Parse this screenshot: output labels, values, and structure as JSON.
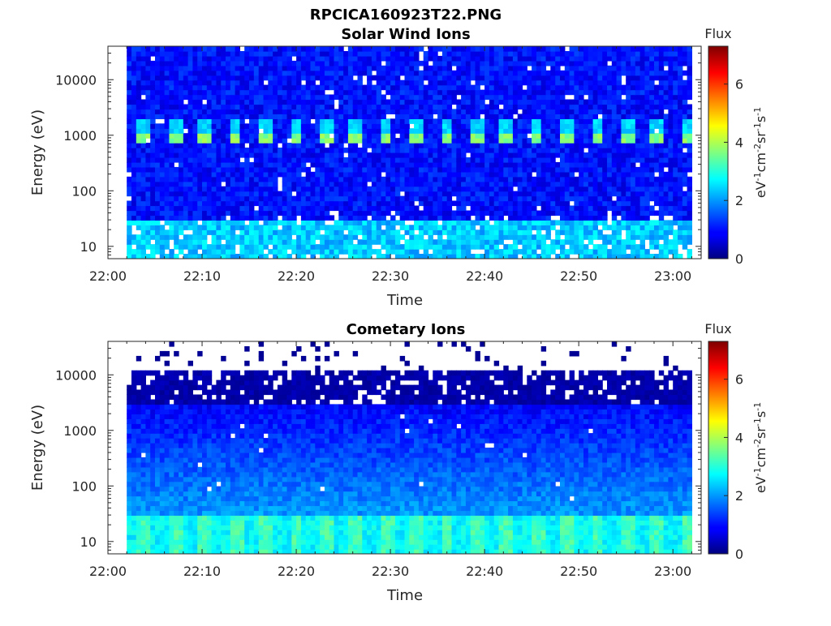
{
  "figure": {
    "title": "RPCICA160923T22.PNG"
  },
  "chart_data": [
    {
      "type": "heatmap",
      "title": "Solar Wind Ions",
      "xlabel": "Time",
      "ylabel": "Energy (eV)",
      "x_ticks": [
        "22:00",
        "22:10",
        "22:20",
        "22:30",
        "22:40",
        "22:50",
        "23:00"
      ],
      "x_range": [
        "22:00",
        "23:03"
      ],
      "data_time_range": [
        "22:02",
        "23:02"
      ],
      "y_scale": "log",
      "y_ticks": [
        "10",
        "100",
        "1000",
        "10000"
      ],
      "y_range": [
        6,
        40000
      ],
      "colorbar": {
        "label": "Flux",
        "units": "eV-1cm-2sr-1s-1",
        "ticks": [
          "0",
          "2",
          "4",
          "6"
        ],
        "range": [
          0,
          7.3
        ],
        "colormap": "jet"
      },
      "features": [
        {
          "description": "periodic peak band",
          "energy_eV": 900,
          "log_flux": 3.6,
          "period_min": 3.2
        },
        {
          "description": "background",
          "log_flux": 1.0
        }
      ]
    },
    {
      "type": "heatmap",
      "title": "Cometary Ions",
      "xlabel": "Time",
      "ylabel": "Energy (eV)",
      "x_ticks": [
        "22:00",
        "22:10",
        "22:20",
        "22:30",
        "22:40",
        "22:50",
        "23:00"
      ],
      "x_range": [
        "22:00",
        "23:03"
      ],
      "data_time_range": [
        "22:02",
        "23:02"
      ],
      "y_scale": "log",
      "y_ticks": [
        "10",
        "100",
        "1000",
        "10000"
      ],
      "y_range": [
        6,
        40000
      ],
      "colorbar": {
        "label": "Flux",
        "units": "eV-1cm-2sr-1s-1",
        "ticks": [
          "0",
          "2",
          "4",
          "6"
        ],
        "range": [
          0,
          7.3
        ],
        "colormap": "jet"
      },
      "features": [
        {
          "description": "low-energy band",
          "energy_eV": [
            6,
            28
          ],
          "log_flux": 3.0
        },
        {
          "description": "sparse high-energy region",
          "energy_eV": [
            3000,
            11000
          ],
          "log_flux": 0.2
        }
      ]
    }
  ]
}
